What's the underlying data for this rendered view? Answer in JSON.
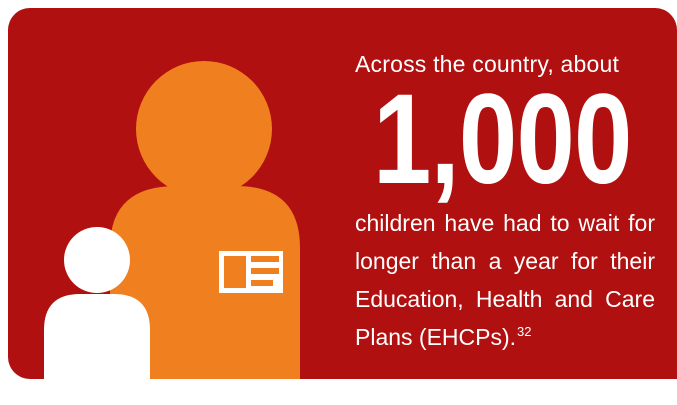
{
  "infographic": {
    "intro": "Across the country, about",
    "number": "1,000",
    "body": "children have had to wait for longer than a year for their Education, Health and Care Plans (EHCPs).",
    "footnote": "32",
    "colors": {
      "background": "#b0100f",
      "adult_figure": "#f07f1f",
      "child_figure": "#ffffff",
      "text": "#ffffff"
    },
    "icons": [
      "adult-figure-icon",
      "child-figure-icon",
      "id-card-icon"
    ]
  }
}
